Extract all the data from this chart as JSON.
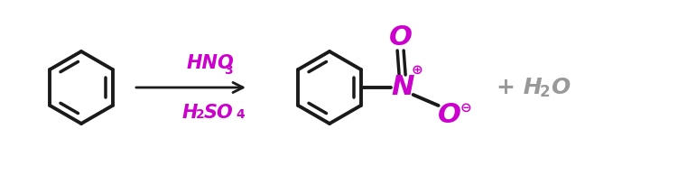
{
  "bg_color": "#ffffff",
  "bond_color": "#1a1a1a",
  "bond_width": 2.8,
  "reagent_color": "#cc00cc",
  "byproduct_color": "#999999",
  "reagent_above": "HNO3",
  "reagent_below": "H2SO4",
  "byproduct": "+ H2O",
  "figsize": [
    7.61,
    1.94
  ],
  "dpi": 100
}
